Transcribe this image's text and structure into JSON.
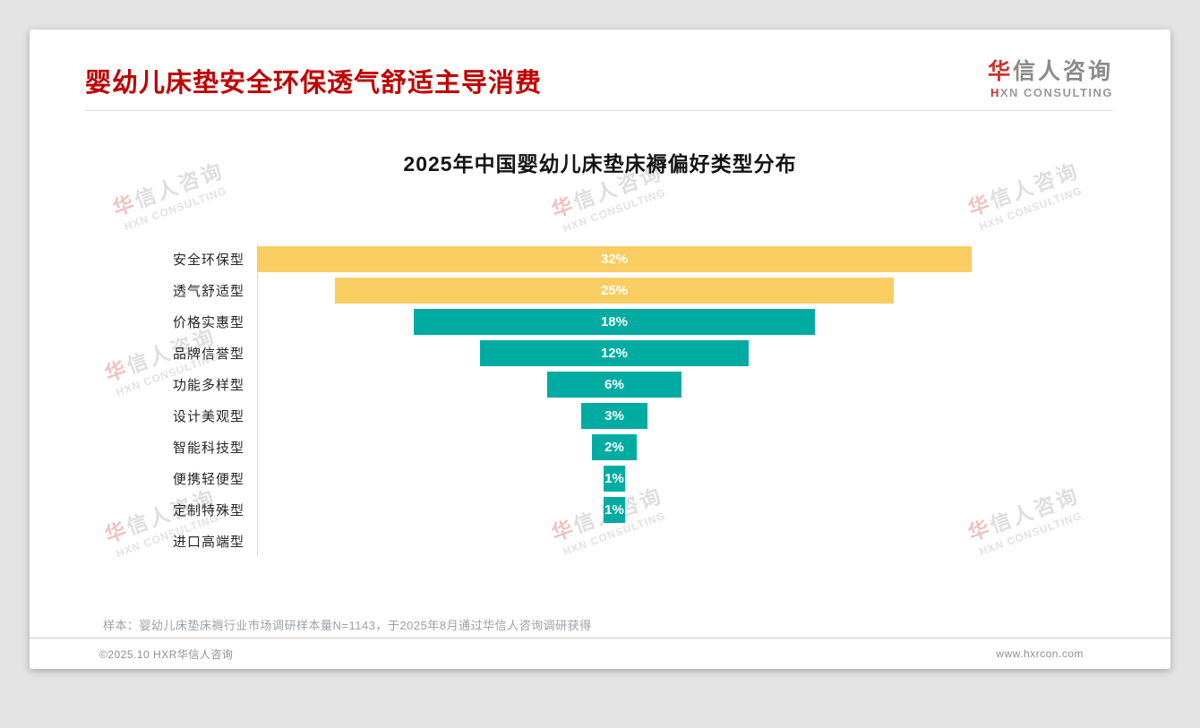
{
  "header": {
    "title": "婴幼儿床垫安全环保透气舒适主导消费",
    "logo": {
      "cn_accent": "华",
      "cn_rest": "信人咨询",
      "en_accent": "H",
      "en_rest": "XN CONSULTING"
    }
  },
  "chart_data": {
    "type": "bar",
    "orientation": "horizontal-centered-funnel",
    "title": "2025年中国婴幼儿床垫床褥偏好类型分布",
    "categories": [
      "安全环保型",
      "透气舒适型",
      "价格实惠型",
      "品牌信誉型",
      "功能多样型",
      "设计美观型",
      "智能科技型",
      "便携轻便型",
      "定制特殊型",
      "进口高端型"
    ],
    "values": [
      32,
      25,
      18,
      12,
      6,
      3,
      2,
      1,
      1,
      0
    ],
    "unit": "%",
    "value_labels": [
      "32%",
      "25%",
      "18%",
      "12%",
      "6%",
      "3%",
      "2%",
      "1%",
      "1%",
      ""
    ],
    "bar_colors": [
      "#FACD62",
      "#FACD62",
      "#00ACA2",
      "#00ACA2",
      "#00ACA2",
      "#00ACA2",
      "#00ACA2",
      "#00ACA2",
      "#00ACA2",
      "#00ACA2"
    ],
    "xlim": [
      0,
      32
    ],
    "grid": false,
    "legend": false
  },
  "note": "样本：婴幼儿床垫床褥行业市场调研样本量N=1143，于2025年8月通过华信人咨询调研获得",
  "footer": {
    "left": "©2025.10 HXR华信人咨询",
    "right": "www.hxrcon.com"
  },
  "watermark": {
    "cn_accent": "华",
    "cn_rest": "信人咨询",
    "en": "HXN CONSULTING"
  },
  "colors": {
    "title_red": "#C00000",
    "bar_yellow": "#FACD62",
    "bar_teal": "#00ACA2",
    "logo_red": "#D0312D",
    "value_label_white": "#FFFFFF",
    "page_background": "#E3E3E3",
    "card_background": "#FFFFFF"
  }
}
